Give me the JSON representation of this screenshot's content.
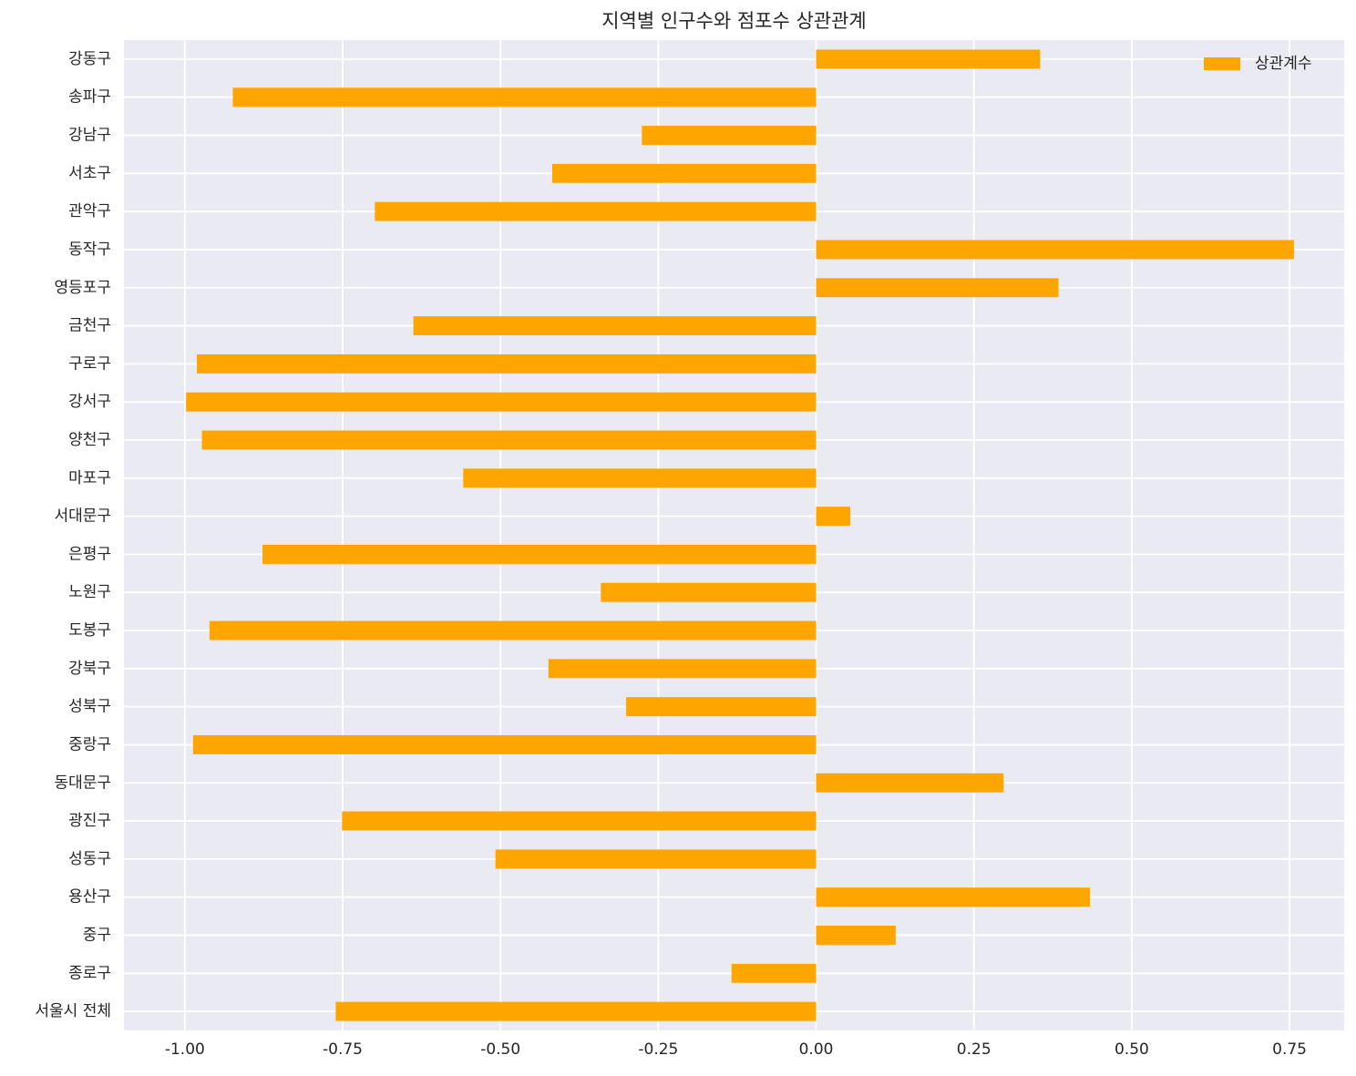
{
  "chart_data": {
    "type": "bar",
    "orientation": "horizontal",
    "title": "지역별 인구수와 점포수 상관관계",
    "xlabel": "",
    "ylabel": "",
    "xlim": [
      -1.0965,
      0.8365
    ],
    "xticks": [
      -1.0,
      -0.75,
      -0.5,
      -0.25,
      0.0,
      0.25,
      0.5,
      0.75
    ],
    "xtick_labels": [
      "-1.00",
      "-0.75",
      "-0.50",
      "-0.25",
      "0.00",
      "0.25",
      "0.50",
      "0.75"
    ],
    "grid": true,
    "legend_position": "top-right",
    "bar_color": "#ffa500",
    "background_color": "#eaeaf2",
    "series": [
      {
        "name": "상관계수",
        "categories": [
          "강동구",
          "송파구",
          "강남구",
          "서초구",
          "관악구",
          "동작구",
          "영등포구",
          "금천구",
          "구로구",
          "강서구",
          "양천구",
          "마포구",
          "서대문구",
          "은평구",
          "노원구",
          "도봉구",
          "강북구",
          "성북구",
          "중랑구",
          "동대문구",
          "광진구",
          "성동구",
          "용산구",
          "중구",
          "종로구",
          "서울시 전체"
        ],
        "values": [
          0.355,
          -0.924,
          -0.276,
          -0.418,
          -0.699,
          0.757,
          0.384,
          -0.638,
          -0.981,
          -0.998,
          -0.973,
          -0.559,
          0.054,
          -0.877,
          -0.341,
          -0.961,
          -0.424,
          -0.301,
          -0.987,
          0.297,
          -0.751,
          -0.508,
          0.434,
          0.126,
          -0.134,
          -0.761
        ]
      }
    ]
  }
}
